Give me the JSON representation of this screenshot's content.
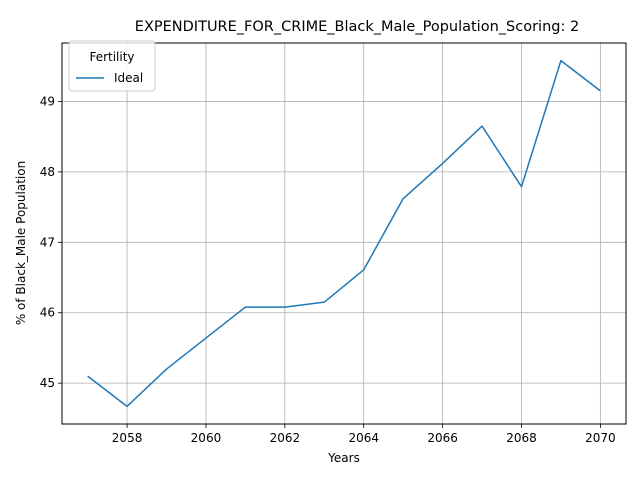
{
  "chart_data": {
    "type": "line",
    "title": "EXPENDITURE_FOR_CRIME_Black_Male_Population_Scoring: 2",
    "xlabel": "Years",
    "ylabel": "% of Black_Male Population",
    "x": [
      2057,
      2058,
      2059,
      2060,
      2061,
      2062,
      2063,
      2064,
      2065,
      2066,
      2067,
      2068,
      2069,
      2070
    ],
    "series": [
      {
        "name": "Ideal",
        "color": "#1f77b4",
        "values": [
          45.1,
          44.67,
          45.2,
          45.64,
          46.08,
          46.08,
          46.15,
          46.61,
          47.62,
          48.12,
          48.65,
          47.79,
          49.58,
          49.15
        ]
      }
    ],
    "xlim": [
      2056.35,
      2070.65
    ],
    "ylim": [
      44.42,
      49.83
    ],
    "xticks": [
      2058,
      2060,
      2062,
      2064,
      2066,
      2068,
      2070
    ],
    "yticks": [
      45,
      46,
      47,
      48,
      49
    ],
    "grid": true,
    "legend": {
      "title": "Fertility",
      "placement": "top-left"
    }
  }
}
